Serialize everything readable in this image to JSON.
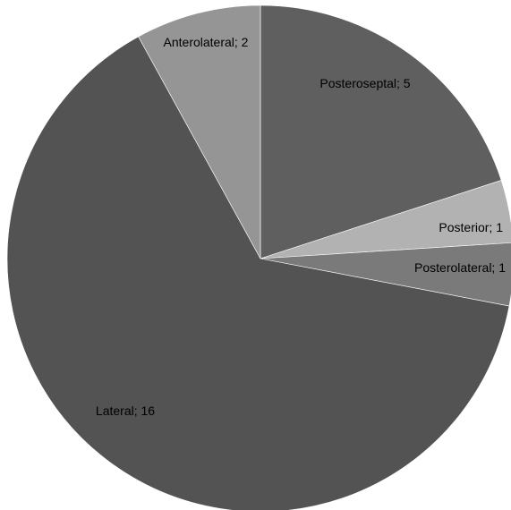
{
  "chart_data": {
    "type": "pie",
    "slices": [
      {
        "name": "Posteroseptal",
        "value": 5,
        "label": "Posteroseptal; 5",
        "color": "#5f5f5f"
      },
      {
        "name": "Posterior",
        "value": 1,
        "label": "Posterior; 1",
        "color": "#b2b2b2"
      },
      {
        "name": "Posterolateral",
        "value": 1,
        "label": "Posterolateral; 1",
        "color": "#7a7a7a"
      },
      {
        "name": "Lateral",
        "value": 16,
        "label": "Lateral; 16",
        "color": "#535353"
      },
      {
        "name": "Anterolateral",
        "value": 2,
        "label": "Anterolateral; 2",
        "color": "#959595"
      }
    ],
    "start_angle": "12 o'clock",
    "direction": "clockwise",
    "legend": "none",
    "data_labels": "category; value"
  }
}
